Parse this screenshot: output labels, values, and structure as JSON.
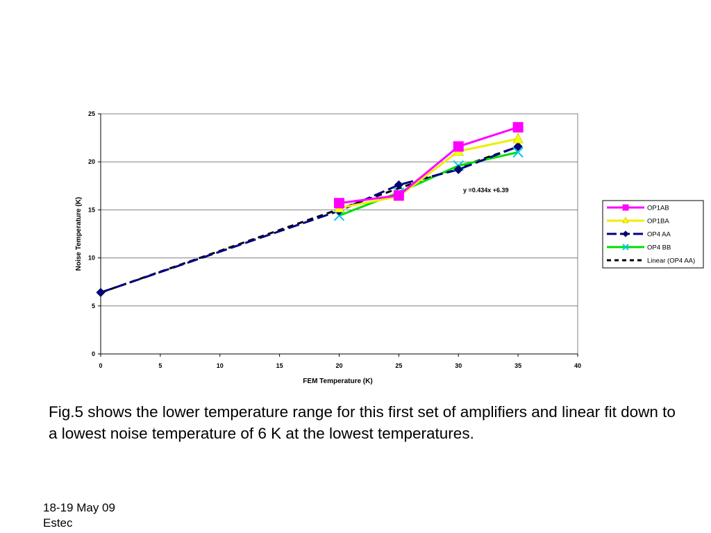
{
  "chart_data": {
    "type": "line",
    "xlabel": "FEM Temperature (K)",
    "ylabel": "Noise Temperature (K)",
    "xlim": [
      0,
      40
    ],
    "ylim": [
      0,
      25
    ],
    "xticks": [
      0,
      5,
      10,
      15,
      20,
      25,
      30,
      35,
      40
    ],
    "yticks": [
      0,
      5,
      10,
      15,
      20,
      25
    ],
    "grid": "horizontal",
    "legend_position": "right",
    "annotation": "y =0.434x +6.39",
    "series": [
      {
        "name": "OP1AB",
        "color": "#ff00ff",
        "marker": "square",
        "x": [
          20,
          25,
          30,
          35
        ],
        "y": [
          15.7,
          16.5,
          21.6,
          23.6
        ]
      },
      {
        "name": "OP1BA",
        "color": "#ffff00",
        "marker": "triangle",
        "x": [
          20,
          25,
          30,
          35
        ],
        "y": [
          15.2,
          16.4,
          21.1,
          22.4
        ]
      },
      {
        "name": "OP4 AA",
        "color": "#000080",
        "marker": "diamond",
        "dashed": true,
        "x": [
          0,
          20,
          25,
          30,
          35
        ],
        "y": [
          6.4,
          14.9,
          17.6,
          19.2,
          21.6
        ]
      },
      {
        "name": "OP4 BB",
        "color": "#00dd00",
        "marker": "x",
        "x": [
          20,
          25,
          30,
          35
        ],
        "y": [
          14.4,
          16.8,
          19.6,
          21.0
        ]
      },
      {
        "name": "Linear (OP4 AA)",
        "color": "#000000",
        "marker": "none",
        "dashed": true,
        "trend": {
          "slope": 0.434,
          "intercept": 6.39
        }
      }
    ]
  },
  "caption": "Fig.5 shows the lower temperature range for this first set of amplifiers and linear fit down to a lowest noise temperature of 6 K at the lowest temperatures.",
  "footer": {
    "date": "18-19 May 09",
    "place": "Estec"
  }
}
